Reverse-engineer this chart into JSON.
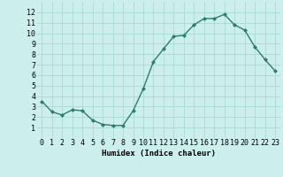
{
  "x": [
    0,
    1,
    2,
    3,
    4,
    5,
    6,
    7,
    8,
    9,
    10,
    11,
    12,
    13,
    14,
    15,
    16,
    17,
    18,
    19,
    20,
    21,
    22,
    23
  ],
  "y": [
    3.5,
    2.5,
    2.2,
    2.7,
    2.6,
    1.7,
    1.3,
    1.2,
    1.2,
    2.6,
    4.7,
    7.3,
    8.5,
    9.7,
    9.8,
    10.8,
    11.4,
    11.4,
    11.8,
    10.8,
    10.3,
    8.7,
    7.5,
    6.4
  ],
  "line_color": "#2d7d6e",
  "marker": "D",
  "marker_size": 2.0,
  "bg_color": "#cceeed",
  "grid_color": "#aad8d4",
  "xlabel": "Humidex (Indice chaleur)",
  "xlim": [
    -0.5,
    23.5
  ],
  "ylim": [
    0,
    13
  ],
  "yticks": [
    1,
    2,
    3,
    4,
    5,
    6,
    7,
    8,
    9,
    10,
    11,
    12
  ],
  "xticks": [
    0,
    1,
    2,
    3,
    4,
    5,
    6,
    7,
    8,
    9,
    10,
    11,
    12,
    13,
    14,
    15,
    16,
    17,
    18,
    19,
    20,
    21,
    22,
    23
  ],
  "xlabel_fontsize": 6.5,
  "tick_fontsize": 6.0,
  "line_width": 1.0
}
